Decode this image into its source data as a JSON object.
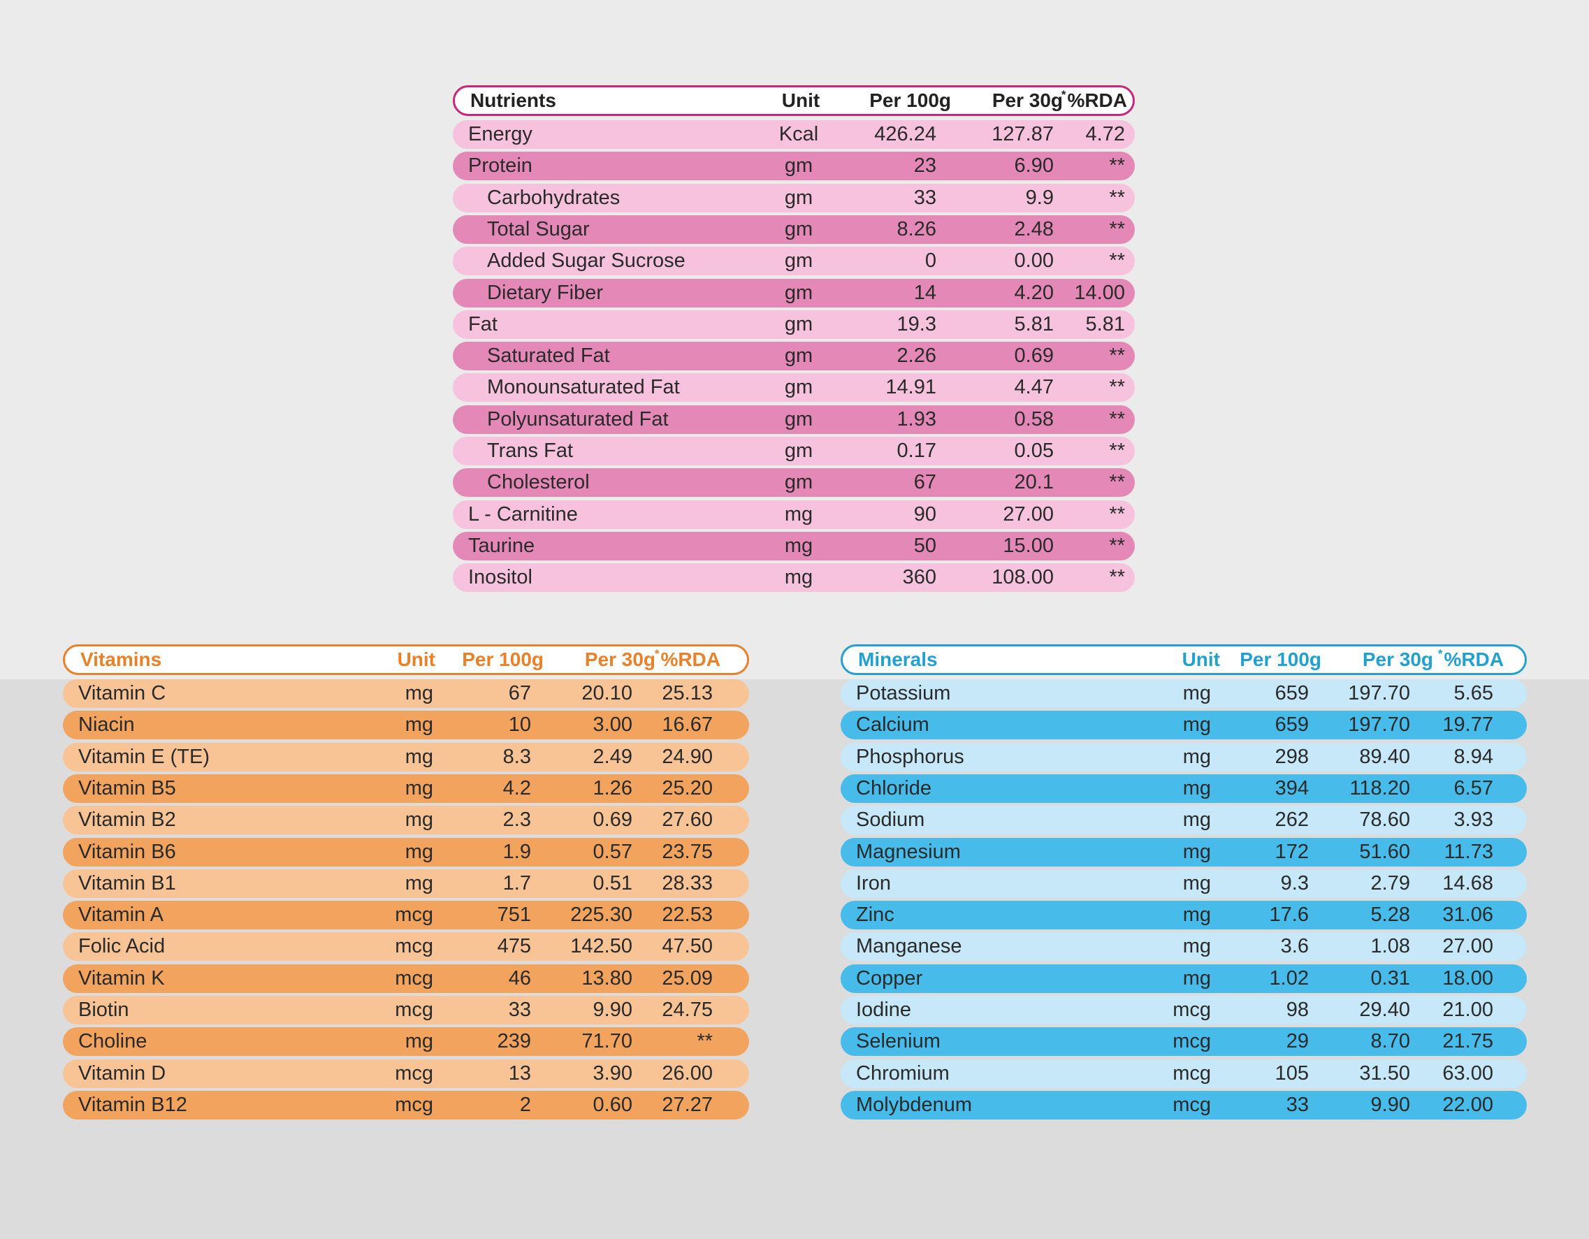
{
  "nutrients": {
    "headers": {
      "name": "Nutrients",
      "unit": "Unit",
      "per100": "Per 100g",
      "per30": "Per 30g",
      "rda_star": "*",
      "rda": "%RDA"
    },
    "rows": [
      {
        "name": "Energy",
        "unit": "Kcal",
        "per100": "426.24",
        "per30": "127.87",
        "rda": "4.72",
        "indent": 0
      },
      {
        "name": "Protein",
        "unit": "gm",
        "per100": "23",
        "per30": "6.90",
        "rda": "**",
        "indent": 0
      },
      {
        "name": "Carbohydrates",
        "unit": "gm",
        "per100": "33",
        "per30": "9.9",
        "rda": "**",
        "indent": 1
      },
      {
        "name": "Total Sugar",
        "unit": "gm",
        "per100": "8.26",
        "per30": "2.48",
        "rda": "**",
        "indent": 1
      },
      {
        "name": "Added Sugar Sucrose",
        "unit": "gm",
        "per100": "0",
        "per30": "0.00",
        "rda": "**",
        "indent": 1
      },
      {
        "name": "Dietary Fiber",
        "unit": "gm",
        "per100": "14",
        "per30": "4.20",
        "rda": "14.00",
        "indent": 1
      },
      {
        "name": "Fat",
        "unit": "gm",
        "per100": "19.3",
        "per30": "5.81",
        "rda": "5.81",
        "indent": 0
      },
      {
        "name": "Saturated Fat",
        "unit": "gm",
        "per100": "2.26",
        "per30": "0.69",
        "rda": "**",
        "indent": 1
      },
      {
        "name": "Monounsaturated Fat",
        "unit": "gm",
        "per100": "14.91",
        "per30": "4.47",
        "rda": "**",
        "indent": 1
      },
      {
        "name": "Polyunsaturated Fat",
        "unit": "gm",
        "per100": "1.93",
        "per30": "0.58",
        "rda": "**",
        "indent": 1
      },
      {
        "name": "Trans Fat",
        "unit": "gm",
        "per100": "0.17",
        "per30": "0.05",
        "rda": "**",
        "indent": 1
      },
      {
        "name": "Cholesterol",
        "unit": "gm",
        "per100": "67",
        "per30": "20.1",
        "rda": "**",
        "indent": 1
      },
      {
        "name": "L - Carnitine",
        "unit": "mg",
        "per100": "90",
        "per30": "27.00",
        "rda": "**",
        "indent": 0
      },
      {
        "name": "Taurine",
        "unit": "mg",
        "per100": "50",
        "per30": "15.00",
        "rda": "**",
        "indent": 0
      },
      {
        "name": "Inositol",
        "unit": "mg",
        "per100": "360",
        "per30": "108.00",
        "rda": "**",
        "indent": 0
      }
    ]
  },
  "vitamins": {
    "headers": {
      "name": "Vitamins",
      "unit": "Unit",
      "per100": "Per 100g",
      "per30": "Per 30g",
      "rda_star": "*",
      "rda": "%RDA"
    },
    "rows": [
      {
        "name": "Vitamin C",
        "unit": "mg",
        "per100": "67",
        "per30": "20.10",
        "rda": "25.13"
      },
      {
        "name": "Niacin",
        "unit": "mg",
        "per100": "10",
        "per30": "3.00",
        "rda": "16.67"
      },
      {
        "name": "Vitamin E (TE)",
        "unit": "mg",
        "per100": "8.3",
        "per30": "2.49",
        "rda": "24.90"
      },
      {
        "name": "Vitamin B5",
        "unit": "mg",
        "per100": "4.2",
        "per30": "1.26",
        "rda": "25.20"
      },
      {
        "name": "Vitamin B2",
        "unit": "mg",
        "per100": "2.3",
        "per30": "0.69",
        "rda": "27.60"
      },
      {
        "name": "Vitamin B6",
        "unit": "mg",
        "per100": "1.9",
        "per30": "0.57",
        "rda": "23.75"
      },
      {
        "name": "Vitamin B1",
        "unit": "mg",
        "per100": "1.7",
        "per30": "0.51",
        "rda": "28.33"
      },
      {
        "name": "Vitamin A",
        "unit": "mcg",
        "per100": "751",
        "per30": "225.30",
        "rda": "22.53"
      },
      {
        "name": "Folic Acid",
        "unit": "mcg",
        "per100": "475",
        "per30": "142.50",
        "rda": "47.50"
      },
      {
        "name": "Vitamin K",
        "unit": "mcg",
        "per100": "46",
        "per30": "13.80",
        "rda": "25.09"
      },
      {
        "name": "Biotin",
        "unit": "mcg",
        "per100": "33",
        "per30": "9.90",
        "rda": "24.75"
      },
      {
        "name": "Choline",
        "unit": "mg",
        "per100": "239",
        "per30": "71.70",
        "rda": "**"
      },
      {
        "name": "Vitamin D",
        "unit": "mcg",
        "per100": "13",
        "per30": "3.90",
        "rda": "26.00"
      },
      {
        "name": "Vitamin B12",
        "unit": "mcg",
        "per100": "2",
        "per30": "0.60",
        "rda": "27.27"
      }
    ]
  },
  "minerals": {
    "headers": {
      "name": "Minerals",
      "unit": "Unit",
      "per100": "Per 100g",
      "per30": "Per 30g",
      "rda_star": "*",
      "rda": "%RDA"
    },
    "rows": [
      {
        "name": "Potassium",
        "unit": "mg",
        "per100": "659",
        "per30": "197.70",
        "rda": "5.65"
      },
      {
        "name": "Calcium",
        "unit": "mg",
        "per100": "659",
        "per30": "197.70",
        "rda": "19.77"
      },
      {
        "name": "Phosphorus",
        "unit": "mg",
        "per100": "298",
        "per30": "89.40",
        "rda": "8.94"
      },
      {
        "name": "Chloride",
        "unit": "mg",
        "per100": "394",
        "per30": "118.20",
        "rda": "6.57"
      },
      {
        "name": "Sodium",
        "unit": "mg",
        "per100": "262",
        "per30": "78.60",
        "rda": "3.93"
      },
      {
        "name": "Magnesium",
        "unit": "mg",
        "per100": "172",
        "per30": "51.60",
        "rda": "11.73"
      },
      {
        "name": "Iron",
        "unit": "mg",
        "per100": "9.3",
        "per30": "2.79",
        "rda": "14.68"
      },
      {
        "name": "Zinc",
        "unit": "mg",
        "per100": "17.6",
        "per30": "5.28",
        "rda": "31.06"
      },
      {
        "name": "Manganese",
        "unit": "mg",
        "per100": "3.6",
        "per30": "1.08",
        "rda": "27.00"
      },
      {
        "name": "Copper",
        "unit": "mg",
        "per100": "1.02",
        "per30": "0.31",
        "rda": "18.00"
      },
      {
        "name": "Iodine",
        "unit": "mcg",
        "per100": "98",
        "per30": "29.40",
        "rda": "21.00"
      },
      {
        "name": "Selenium",
        "unit": "mcg",
        "per100": "29",
        "per30": "8.70",
        "rda": "21.75"
      },
      {
        "name": "Chromium",
        "unit": "mcg",
        "per100": "105",
        "per30": "31.50",
        "rda": "63.00"
      },
      {
        "name": "Molybdenum",
        "unit": "mcg",
        "per100": "33",
        "per30": "9.90",
        "rda": "22.00"
      }
    ]
  },
  "colors": {
    "nutrients_accent": "#c8267a",
    "nutrients_light": "#f6c2dd",
    "nutrients_dark": "#e489b7",
    "vitamins_accent": "#e8812a",
    "vitamins_light": "#f8c495",
    "vitamins_dark": "#f2a35e",
    "minerals_accent": "#22a0cf",
    "minerals_light": "#c7e8f8",
    "minerals_dark": "#47bbe9"
  }
}
